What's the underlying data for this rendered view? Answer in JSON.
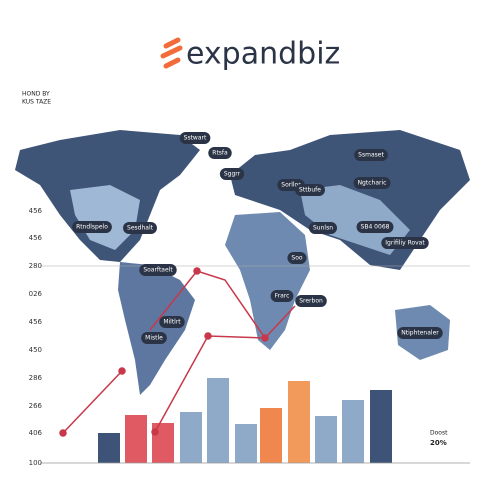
{
  "header": {
    "logo": "expandbiz",
    "corner": [
      "HOND BY",
      "KUS TAZE"
    ]
  },
  "axis_labels": [
    "456",
    "456",
    "280",
    "026",
    "456",
    "450",
    "286",
    "266",
    "406",
    "100"
  ],
  "map_labels": [
    "Sstwart",
    "Rtsfa",
    "Sggrr",
    "Sorllor",
    "Sttbufe",
    "Ssmaset",
    "Ngtcharic",
    "Rtndlspelo",
    "Sesdhalt",
    "Sunlsn",
    "SB4 0068",
    "Igrifiliy Rovat",
    "Soo",
    "Soarftaelt",
    "Frarc",
    "Srerbon",
    "Miltlrt",
    "Mistle",
    "Ntiphtenaler"
  ],
  "footer": {
    "label": "Doost",
    "value": "20%"
  }
}
